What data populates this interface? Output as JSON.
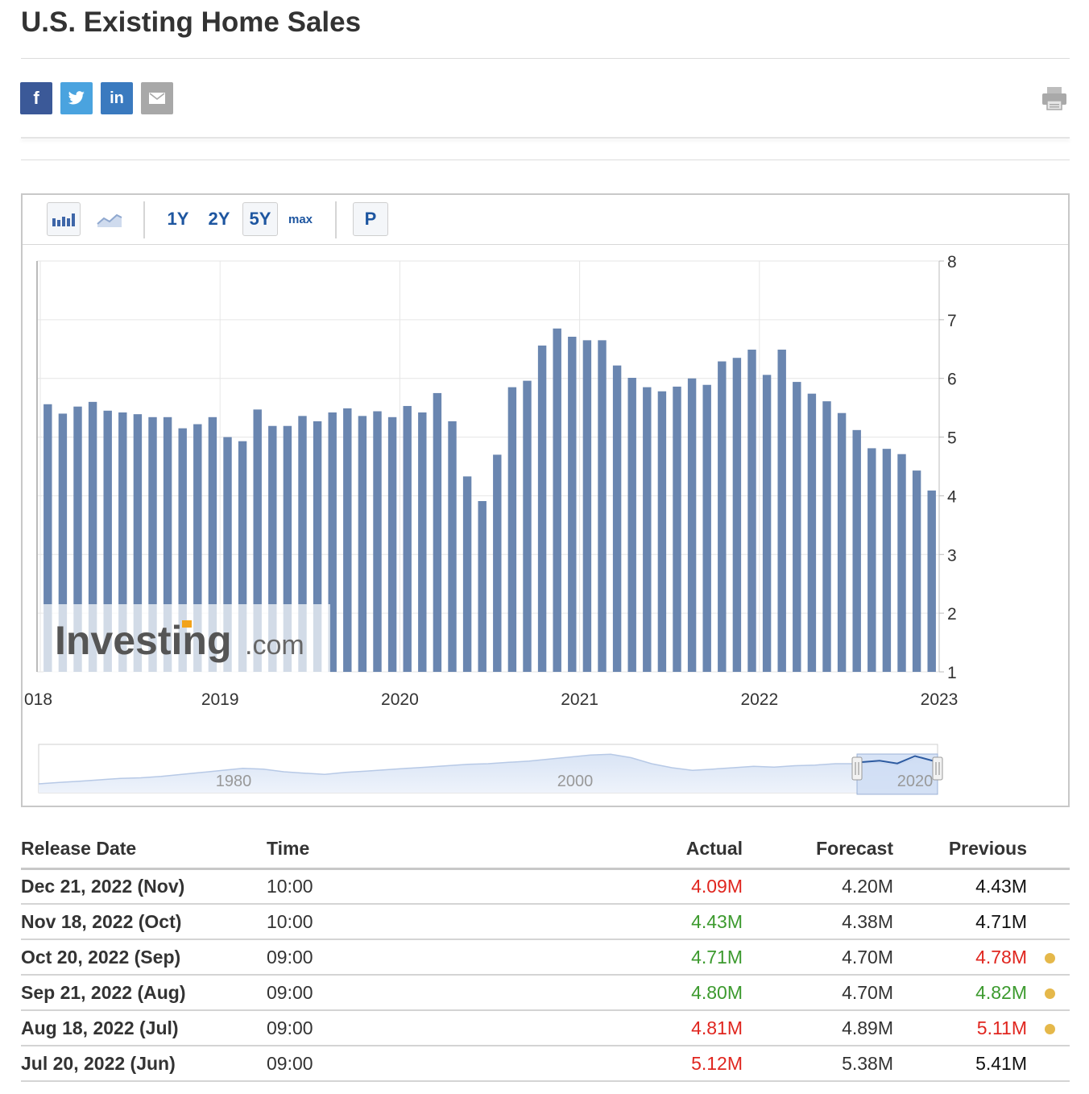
{
  "page": {
    "title": "U.S. Existing Home Sales"
  },
  "share": [
    {
      "label": "f",
      "icon": "facebook-icon",
      "color": "#3b5998"
    },
    {
      "label": "",
      "icon": "twitter-icon",
      "color": "#4aa3df"
    },
    {
      "label": "in",
      "icon": "linkedin-icon",
      "color": "#3a7abf"
    },
    {
      "label": "",
      "icon": "email-icon",
      "color": "#a8a8a8"
    }
  ],
  "toolbar": {
    "ranges": [
      "1Y",
      "2Y",
      "5Y",
      "max"
    ],
    "selected_range": "5Y",
    "p_label": "P"
  },
  "chart_data": {
    "type": "bar",
    "title": "",
    "xlabel": "",
    "ylabel": "",
    "ylim": [
      1,
      8
    ],
    "yticks": [
      1,
      2,
      3,
      4,
      5,
      6,
      7,
      8
    ],
    "x_start": "2018-01",
    "x_tick_labels": [
      "018",
      "2019",
      "2020",
      "2021",
      "2022",
      "2023"
    ],
    "grid": true,
    "color": "#6a86b0",
    "values": [
      5.56,
      5.4,
      5.52,
      5.6,
      5.45,
      5.42,
      5.39,
      5.34,
      5.34,
      5.15,
      5.22,
      5.34,
      5.0,
      4.93,
      5.47,
      5.19,
      5.19,
      5.36,
      5.27,
      5.42,
      5.49,
      5.36,
      5.44,
      5.34,
      5.53,
      5.42,
      5.75,
      5.27,
      4.33,
      3.91,
      4.7,
      5.85,
      5.96,
      6.56,
      6.85,
      6.71,
      6.65,
      6.65,
      6.22,
      6.01,
      5.85,
      5.78,
      5.86,
      6.0,
      5.89,
      6.29,
      6.35,
      6.49,
      6.06,
      6.49,
      5.94,
      5.74,
      5.61,
      5.41,
      5.12,
      4.81,
      4.8,
      4.71,
      4.43,
      4.09
    ],
    "watermark": "Investing",
    "watermark_suffix": ".com",
    "navigator": {
      "labels": [
        "1980",
        "2000",
        "2020"
      ],
      "series": [
        2.6,
        2.8,
        3.0,
        3.2,
        3.4,
        3.5,
        3.7,
        4.0,
        4.3,
        4.6,
        4.9,
        4.8,
        4.4,
        4.2,
        4.0,
        4.3,
        4.5,
        4.7,
        4.9,
        5.1,
        5.3,
        5.5,
        5.6,
        5.8,
        6.0,
        6.3,
        6.6,
        6.9,
        7.0,
        6.5,
        5.6,
        5.0,
        4.6,
        4.8,
        5.0,
        5.2,
        5.1,
        5.3,
        5.4,
        5.6,
        5.6,
        5.8,
        5.4,
        6.5,
        5.8
      ]
    }
  },
  "table": {
    "headers": {
      "date": "Release Date",
      "time": "Time",
      "actual": "Actual",
      "forecast": "Forecast",
      "previous": "Previous"
    },
    "rows": [
      {
        "date": "Dec 21, 2022 (Nov)",
        "time": "10:00",
        "actual": "4.09M",
        "actual_state": "down",
        "forecast": "4.20M",
        "previous": "4.43M",
        "previous_state": "flat",
        "revised": false
      },
      {
        "date": "Nov 18, 2022 (Oct)",
        "time": "10:00",
        "actual": "4.43M",
        "actual_state": "up",
        "forecast": "4.38M",
        "previous": "4.71M",
        "previous_state": "flat",
        "revised": false
      },
      {
        "date": "Oct 20, 2022 (Sep)",
        "time": "09:00",
        "actual": "4.71M",
        "actual_state": "up",
        "forecast": "4.70M",
        "previous": "4.78M",
        "previous_state": "down",
        "revised": true
      },
      {
        "date": "Sep 21, 2022 (Aug)",
        "time": "09:00",
        "actual": "4.80M",
        "actual_state": "up",
        "forecast": "4.70M",
        "previous": "4.82M",
        "previous_state": "up",
        "revised": true
      },
      {
        "date": "Aug 18, 2022 (Jul)",
        "time": "09:00",
        "actual": "4.81M",
        "actual_state": "down",
        "forecast": "4.89M",
        "previous": "5.11M",
        "previous_state": "down",
        "revised": true
      },
      {
        "date": "Jul 20, 2022 (Jun)",
        "time": "09:00",
        "actual": "5.12M",
        "actual_state": "down",
        "forecast": "5.38M",
        "previous": "5.41M",
        "previous_state": "flat",
        "revised": false
      }
    ]
  }
}
